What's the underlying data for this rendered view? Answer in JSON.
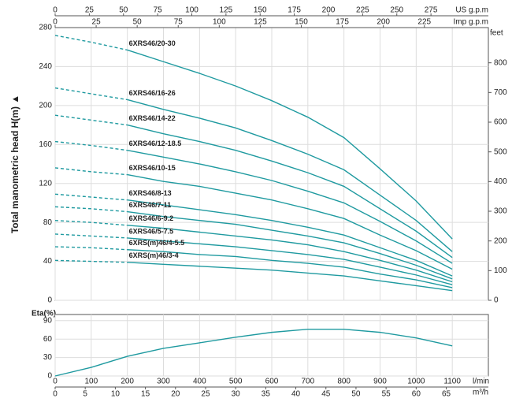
{
  "chart_data": [
    {
      "type": "line",
      "y_label": "Total manometric head H(m) ▲",
      "y2_label": "feet",
      "x": [
        0,
        100,
        200,
        300,
        400,
        500,
        600,
        700,
        800,
        900,
        1000,
        1100
      ],
      "xlim": [
        0,
        1200
      ],
      "xticks": [
        0,
        100,
        200,
        300,
        400,
        500,
        600,
        700,
        800,
        900,
        1000,
        1100
      ],
      "ylim": [
        0,
        280
      ],
      "yticks": [
        0,
        40,
        80,
        120,
        160,
        200,
        240,
        280
      ],
      "y2lim": [
        0,
        918.6
      ],
      "y2ticks": [
        0,
        100,
        200,
        300,
        400,
        500,
        600,
        700,
        800
      ],
      "grid": true,
      "dashed_below": 200,
      "top_axes": [
        {
          "label": "US g.p.m",
          "lim": [
            0,
            317
          ],
          "ticks": [
            0,
            25,
            50,
            75,
            100,
            125,
            150,
            175,
            200,
            225,
            250,
            275
          ]
        },
        {
          "label": "Imp g.p.m",
          "lim": [
            0,
            264
          ],
          "ticks": [
            0,
            25,
            50,
            75,
            100,
            125,
            150,
            175,
            200,
            225
          ]
        }
      ],
      "series": [
        {
          "name": "6XRS46/20-30",
          "color": "#1f9aa0",
          "values": [
            272,
            265,
            257,
            245,
            233,
            220,
            205,
            188,
            167,
            135,
            102,
            63
          ]
        },
        {
          "name": "6XRS46/16-26",
          "color": "#1f9aa0",
          "values": [
            218,
            212,
            206,
            196,
            187,
            177,
            164,
            150,
            134,
            108,
            82,
            50
          ]
        },
        {
          "name": "6XRS46/14-22",
          "color": "#1f9aa0",
          "values": [
            190,
            185,
            180,
            171,
            163,
            154,
            143,
            131,
            117,
            94,
            71,
            44
          ]
        },
        {
          "name": "6XRS46/12-18.5",
          "color": "#1f9aa0",
          "values": [
            163,
            159,
            154,
            147,
            140,
            132,
            123,
            112,
            100,
            81,
            61,
            38
          ]
        },
        {
          "name": "6XRS46/10-15",
          "color": "#1f9aa0",
          "values": [
            136,
            132,
            129,
            122,
            117,
            110,
            103,
            94,
            84,
            67,
            51,
            32
          ]
        },
        {
          "name": "6XRS46/8-13",
          "color": "#1f9aa0",
          "values": [
            109,
            106,
            103,
            98,
            93,
            88,
            82,
            75,
            67,
            54,
            41,
            25
          ]
        },
        {
          "name": "6XRS46/7-11",
          "color": "#1f9aa0",
          "values": [
            96,
            94,
            91,
            86,
            82,
            78,
            72,
            66,
            59,
            48,
            36,
            22
          ]
        },
        {
          "name": "6XRS46/6-9.2",
          "color": "#1f9aa0",
          "values": [
            82,
            80,
            77,
            74,
            70,
            66,
            62,
            57,
            50,
            41,
            31,
            19
          ]
        },
        {
          "name": "6XRS46/5-7.5",
          "color": "#1f9aa0",
          "values": [
            68,
            66,
            64,
            61,
            58,
            55,
            51,
            47,
            42,
            34,
            26,
            16
          ]
        },
        {
          "name": "6XRS(m)46/4-5.5",
          "color": "#1f9aa0",
          "values": [
            55,
            54,
            52,
            50,
            47,
            45,
            41,
            38,
            34,
            27,
            21,
            13
          ]
        },
        {
          "name": "6XRS(m)46/3-4",
          "color": "#1f9aa0",
          "values": [
            41,
            40,
            39,
            37,
            35,
            33,
            31,
            28,
            25,
            20,
            15,
            10
          ]
        }
      ]
    },
    {
      "type": "line",
      "y_label": "Eta(%)",
      "x_label": "l/min",
      "x": [
        0,
        100,
        200,
        300,
        400,
        500,
        600,
        700,
        800,
        900,
        1000,
        1100
      ],
      "xlim": [
        0,
        1200
      ],
      "xticks": [
        0,
        100,
        200,
        300,
        400,
        500,
        600,
        700,
        800,
        900,
        1000,
        1100
      ],
      "ylim": [
        0,
        100
      ],
      "yticks": [
        0,
        30,
        60,
        90
      ],
      "grid": true,
      "bottom_axis": {
        "label": "m³/h",
        "lim": [
          0,
          72
        ],
        "ticks": [
          0,
          5,
          10,
          15,
          20,
          25,
          30,
          35,
          40,
          45,
          50,
          55,
          60,
          65
        ]
      },
      "color": "#1f9aa0",
      "values": [
        0,
        14,
        32,
        45,
        54,
        63,
        71,
        76,
        76,
        71,
        62,
        49
      ]
    }
  ]
}
